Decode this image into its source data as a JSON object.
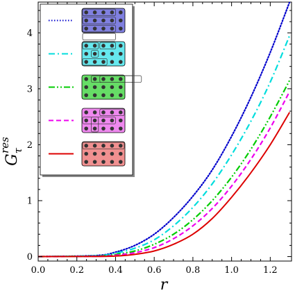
{
  "chart_data": {
    "type": "line",
    "xlabel": "r",
    "ylabel": {
      "main": "G",
      "superscript": "res",
      "subscript": "τ"
    },
    "xlim": [
      0.0,
      1.31
    ],
    "ylim": [
      -0.08,
      4.55
    ],
    "x_ticks": [
      "0.0",
      "0.2",
      "0.4",
      "0.6",
      "0.8",
      "1.0",
      "1.2"
    ],
    "y_ticks": [
      "0",
      "1",
      "2",
      "3",
      "4"
    ],
    "grid": false,
    "legend": {
      "placement": "top-left",
      "entries": [
        {
          "color": "#0000cc",
          "dash": "dotted",
          "tile_fill": "#8080e0",
          "highlight": [
            [
              0,
              0,
              4,
              1
            ],
            [
              1,
              0,
              4,
              1
            ],
            [
              2,
              0,
              4,
              1
            ],
            [
              3,
              0,
              4,
              1
            ],
            [
              4,
              0,
              4,
              1
            ]
          ]
        },
        {
          "color": "#00dddd",
          "dash": "dashdot",
          "tile_fill": "#66e8ee",
          "highlight": [
            [
              0,
              0,
              2,
              1
            ],
            [
              2,
              0,
              3,
              1
            ],
            [
              1,
              1,
              1,
              1
            ],
            [
              0,
              2,
              2,
              1
            ]
          ]
        },
        {
          "color": "#00cc00",
          "dash": "dashdotdot",
          "tile_fill": "#66dd66",
          "highlight": [
            [
              0,
              1,
              5,
              1
            ],
            [
              0,
              2,
              5,
              1
            ]
          ]
        },
        {
          "color": "#ee00ee",
          "dash": "dashed",
          "tile_fill": "#ee88ee",
          "highlight": [
            [
              1,
              0,
              4,
              1
            ],
            [
              1,
              1,
              1,
              2
            ],
            [
              0,
              2,
              3,
              1
            ]
          ]
        },
        {
          "color": "#dd0000",
          "dash": "solid",
          "tile_fill": "#f09090",
          "highlight": [
            [
              0,
              0,
              5,
              1
            ]
          ]
        }
      ]
    },
    "series": [
      {
        "color": "#0000cc",
        "dash": "dotted",
        "final_value": 4.55,
        "points": [
          [
            0,
            0
          ],
          [
            0.3,
            0.02
          ],
          [
            0.4,
            0.08
          ],
          [
            0.5,
            0.2
          ],
          [
            0.6,
            0.4
          ],
          [
            0.7,
            0.7
          ],
          [
            0.8,
            1.08
          ],
          [
            0.9,
            1.55
          ],
          [
            1.0,
            2.15
          ],
          [
            1.1,
            2.85
          ],
          [
            1.2,
            3.65
          ],
          [
            1.3,
            4.55
          ]
        ]
      },
      {
        "color": "#00dddd",
        "dash": "dashdot",
        "final_value": 3.95,
        "points": [
          [
            0,
            0
          ],
          [
            0.3,
            0.015
          ],
          [
            0.4,
            0.06
          ],
          [
            0.5,
            0.15
          ],
          [
            0.6,
            0.3
          ],
          [
            0.7,
            0.55
          ],
          [
            0.8,
            0.88
          ],
          [
            0.9,
            1.3
          ],
          [
            1.0,
            1.82
          ],
          [
            1.1,
            2.42
          ],
          [
            1.2,
            3.12
          ],
          [
            1.3,
            3.95
          ]
        ]
      },
      {
        "color": "#00cc00",
        "dash": "dashdotdot",
        "final_value": 3.15,
        "points": [
          [
            0,
            0
          ],
          [
            0.3,
            0.01
          ],
          [
            0.4,
            0.04
          ],
          [
            0.5,
            0.1
          ],
          [
            0.6,
            0.22
          ],
          [
            0.7,
            0.4
          ],
          [
            0.8,
            0.66
          ],
          [
            0.9,
            1.0
          ],
          [
            1.0,
            1.42
          ],
          [
            1.1,
            1.92
          ],
          [
            1.2,
            2.5
          ],
          [
            1.3,
            3.15
          ]
        ]
      },
      {
        "color": "#ee00ee",
        "dash": "dashed",
        "final_value": 2.95,
        "points": [
          [
            0,
            0
          ],
          [
            0.3,
            0.005
          ],
          [
            0.4,
            0.025
          ],
          [
            0.5,
            0.07
          ],
          [
            0.6,
            0.16
          ],
          [
            0.7,
            0.32
          ],
          [
            0.8,
            0.55
          ],
          [
            0.9,
            0.86
          ],
          [
            1.0,
            1.26
          ],
          [
            1.1,
            1.74
          ],
          [
            1.2,
            2.3
          ],
          [
            1.3,
            2.95
          ]
        ]
      },
      {
        "color": "#dd0000",
        "dash": "solid",
        "final_value": 2.58,
        "points": [
          [
            0,
            0
          ],
          [
            0.3,
            0.002
          ],
          [
            0.4,
            0.01
          ],
          [
            0.5,
            0.04
          ],
          [
            0.6,
            0.1
          ],
          [
            0.7,
            0.22
          ],
          [
            0.8,
            0.4
          ],
          [
            0.9,
            0.68
          ],
          [
            1.0,
            1.06
          ],
          [
            1.1,
            1.5
          ],
          [
            1.2,
            2.0
          ],
          [
            1.3,
            2.58
          ]
        ]
      }
    ]
  }
}
